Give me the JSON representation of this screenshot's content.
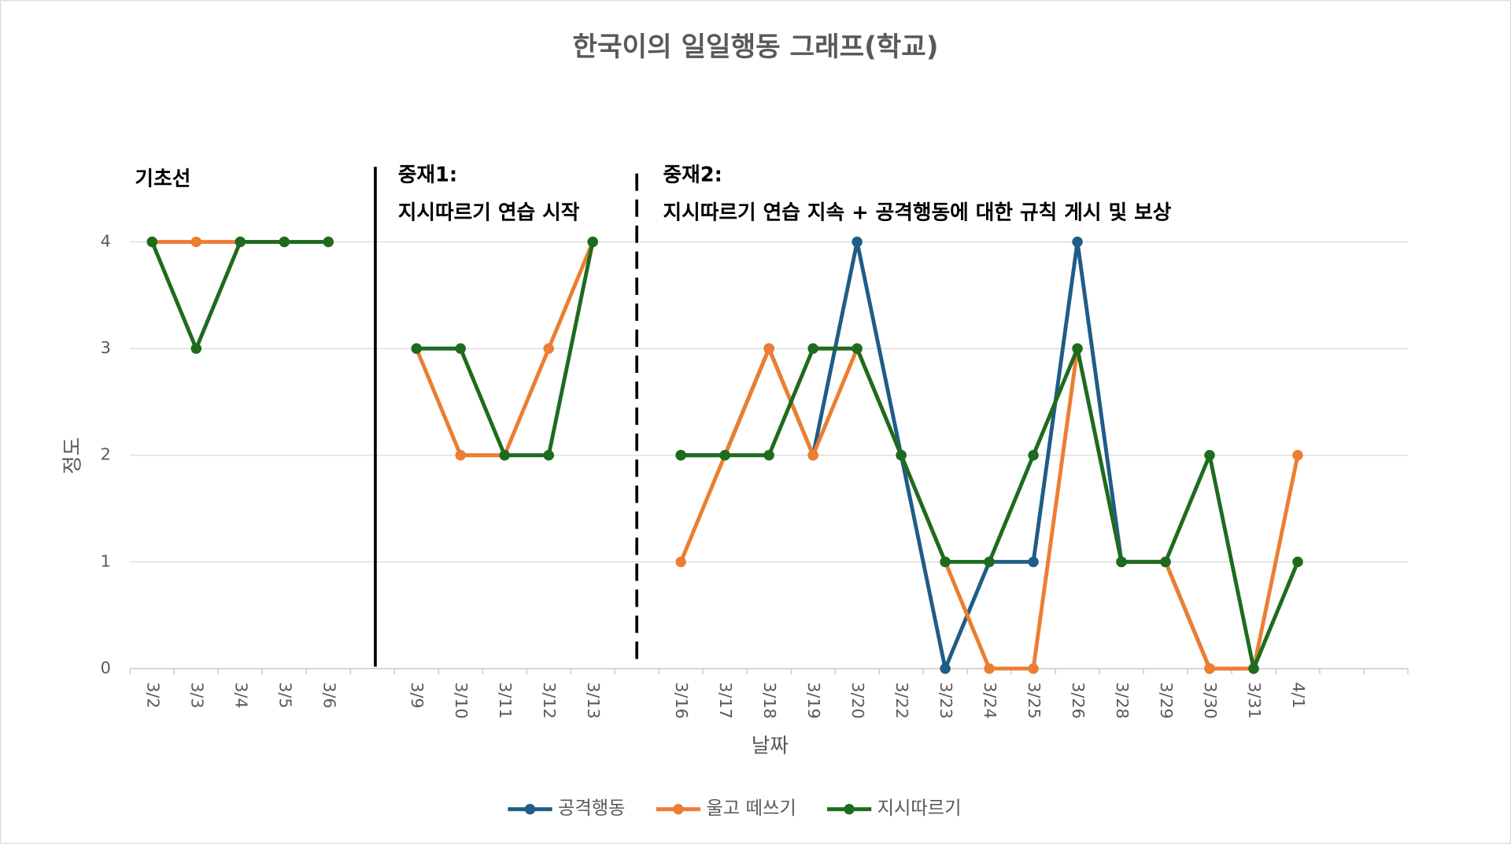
{
  "chart_data": {
    "type": "line",
    "title": "한국이의 일일행동 그래프(학교)",
    "x_label": "날짜",
    "y_label": "정도",
    "categories": [
      "3/2",
      "3/3",
      "3/4",
      "3/5",
      "3/6",
      null,
      "3/9",
      "3/10",
      "3/11",
      "3/12",
      "3/13",
      null,
      "3/16",
      "3/17",
      "3/18",
      "3/19",
      "3/20",
      "3/22",
      "3/23",
      "3/24",
      "3/25",
      "3/26",
      "3/28",
      "3/29",
      "3/30",
      "3/31",
      "4/1",
      null,
      null
    ],
    "series": [
      {
        "name": "공격행동",
        "color": "#1f5c86",
        "values": [
          null,
          null,
          null,
          null,
          null,
          null,
          null,
          null,
          null,
          null,
          null,
          null,
          2,
          2,
          3,
          2,
          4,
          2,
          0,
          1,
          1,
          4,
          1,
          1,
          0,
          0,
          null,
          null,
          null
        ]
      },
      {
        "name": "울고 떼쓰기",
        "color": "#ed7d31",
        "values": [
          4,
          4,
          4,
          4,
          4,
          null,
          3,
          2,
          2,
          3,
          4,
          null,
          1,
          2,
          3,
          2,
          3,
          2,
          1,
          0,
          0,
          3,
          1,
          1,
          0,
          0,
          2,
          null,
          null
        ]
      },
      {
        "name": "지시따르기",
        "color": "#1e6b1e",
        "values": [
          4,
          3,
          4,
          4,
          4,
          null,
          3,
          3,
          2,
          2,
          4,
          null,
          2,
          2,
          2,
          3,
          3,
          2,
          1,
          1,
          2,
          3,
          1,
          1,
          2,
          0,
          1,
          null,
          null
        ]
      }
    ],
    "ylim": [
      0,
      4
    ],
    "yticks": [
      0,
      1,
      2,
      3,
      4
    ],
    "grid": true,
    "legend": "bottom",
    "annotations": [
      "기초선",
      "중재1:",
      "지시따르기 연습 시작",
      "중재2:",
      "지시따르기 연습 지속 + 공격행동에 대한 규칙 게시 및 보상"
    ]
  }
}
